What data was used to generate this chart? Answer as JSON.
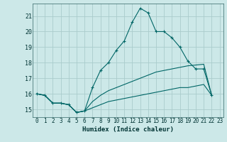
{
  "xlabel": "Humidex (Indice chaleur)",
  "background_color": "#cce8e8",
  "grid_color": "#aacccc",
  "line_color": "#006666",
  "xlim": [
    -0.5,
    23.5
  ],
  "ylim": [
    14.5,
    21.8
  ],
  "yticks": [
    15,
    16,
    17,
    18,
    19,
    20,
    21
  ],
  "xticks": [
    0,
    1,
    2,
    3,
    4,
    5,
    6,
    7,
    8,
    9,
    10,
    11,
    12,
    13,
    14,
    15,
    16,
    17,
    18,
    19,
    20,
    21,
    22,
    23
  ],
  "lines": [
    {
      "x": [
        0,
        1,
        2,
        3,
        4,
        5,
        6,
        7,
        8,
        9,
        10,
        11,
        12,
        13,
        14,
        15,
        16,
        17,
        18,
        19,
        20,
        21,
        22
      ],
      "y": [
        16.0,
        15.9,
        15.4,
        15.4,
        15.3,
        14.8,
        14.9,
        16.4,
        17.5,
        18.0,
        18.8,
        19.4,
        20.6,
        21.5,
        21.2,
        20.0,
        20.0,
        19.6,
        19.0,
        18.1,
        17.6,
        17.6,
        15.9
      ],
      "marker": true
    },
    {
      "x": [
        0,
        1,
        2,
        3,
        4,
        5,
        6,
        7,
        8,
        9,
        10,
        11,
        12,
        13,
        14,
        15,
        16,
        17,
        18,
        19,
        20,
        21,
        22
      ],
      "y": [
        16.0,
        15.9,
        15.4,
        15.4,
        15.3,
        14.8,
        14.9,
        15.5,
        15.9,
        16.2,
        16.4,
        16.6,
        16.8,
        17.0,
        17.2,
        17.4,
        17.5,
        17.6,
        17.7,
        17.8,
        17.85,
        17.9,
        15.9
      ],
      "marker": false
    },
    {
      "x": [
        0,
        1,
        2,
        3,
        4,
        5,
        6,
        7,
        8,
        9,
        10,
        11,
        12,
        13,
        14,
        15,
        16,
        17,
        18,
        19,
        20,
        21,
        22
      ],
      "y": [
        16.0,
        15.9,
        15.4,
        15.4,
        15.3,
        14.8,
        14.9,
        15.1,
        15.3,
        15.5,
        15.6,
        15.7,
        15.8,
        15.9,
        16.0,
        16.1,
        16.2,
        16.3,
        16.4,
        16.4,
        16.5,
        16.6,
        15.9
      ],
      "marker": false
    }
  ]
}
